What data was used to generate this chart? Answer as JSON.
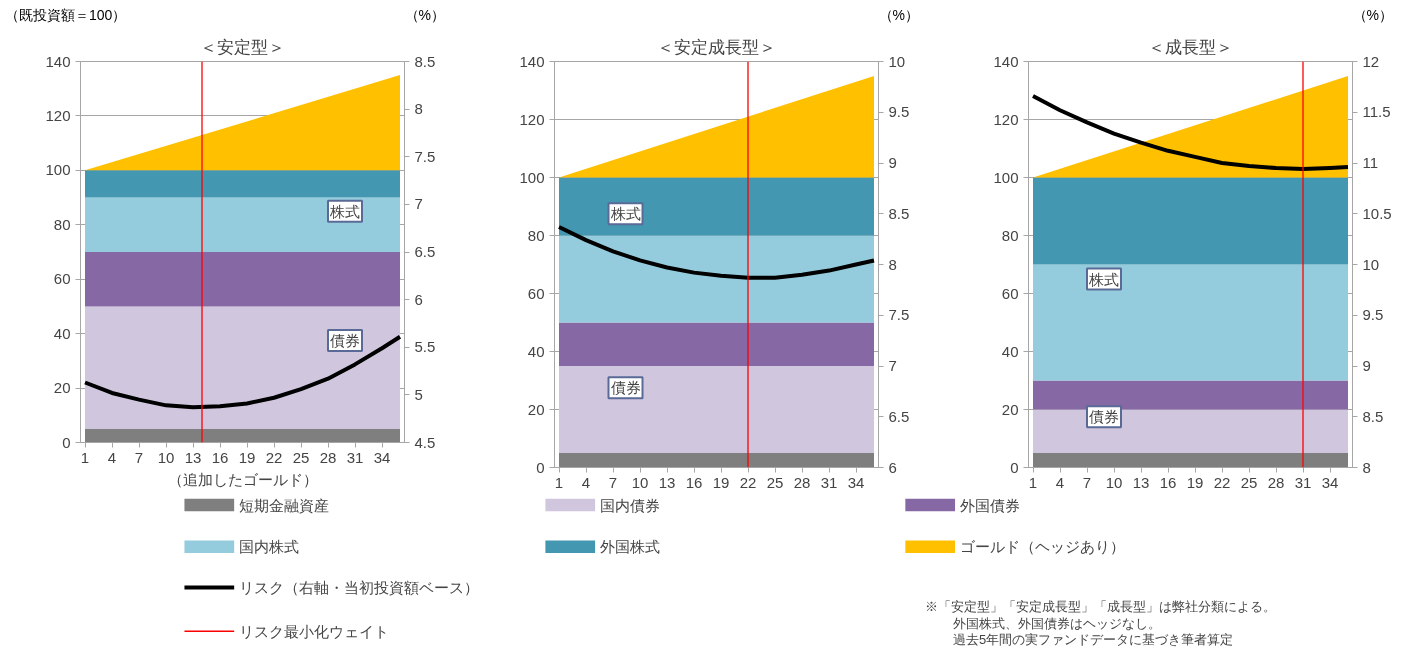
{
  "chart_data": [
    {
      "type": "area",
      "title": "＜安定型＞",
      "xlabel": "（追加したゴールド）",
      "ylabel": "（既投資額＝100）",
      "y2label": "（%）",
      "stacked": true,
      "legend": "bottom",
      "grid": "y",
      "xlim": [
        0.5,
        36.5
      ],
      "xticks": [
        1,
        4,
        7,
        10,
        13,
        16,
        19,
        22,
        25,
        28,
        31,
        34
      ],
      "ylim": [
        0,
        140
      ],
      "yticks": [
        0,
        20,
        40,
        60,
        80,
        100,
        120,
        140
      ],
      "y2lim": [
        4.5,
        8.5
      ],
      "y2ticks": [
        4.5,
        5,
        5.5,
        6,
        6.5,
        7,
        7.5,
        8,
        8.5
      ],
      "series": [
        {
          "name": "短期金融資産",
          "color": "#7f7f7f",
          "x": [
            1,
            36
          ],
          "values": [
            5,
            5
          ]
        },
        {
          "name": "国内債券",
          "color": "#d0c6de",
          "x": [
            1,
            36
          ],
          "values": [
            45,
            45
          ]
        },
        {
          "name": "外国債券",
          "color": "#8669a4",
          "x": [
            1,
            36
          ],
          "values": [
            20,
            20
          ]
        },
        {
          "name": "国内株式",
          "color": "#94ccdd",
          "x": [
            1,
            36
          ],
          "values": [
            20,
            20
          ]
        },
        {
          "name": "外国株式",
          "color": "#4397b0",
          "x": [
            1,
            36
          ],
          "values": [
            10,
            10
          ]
        },
        {
          "name": "ゴールド（ヘッジあり）",
          "color": "#ffc000",
          "x": [
            1,
            36
          ],
          "values": [
            0,
            35
          ]
        },
        {
          "name": "リスク（右軸・当初投資額ベース）",
          "type": "line",
          "axis": "y2",
          "color": "#000000",
          "x": [
            1,
            4,
            7,
            10,
            13,
            16,
            19,
            22,
            25,
            28,
            31,
            34,
            36
          ],
          "values": [
            5.13,
            5.02,
            4.95,
            4.89,
            4.87,
            4.88,
            4.91,
            4.97,
            5.06,
            5.17,
            5.32,
            5.49,
            5.61
          ]
        }
      ],
      "ref_lines": [
        {
          "axis": "x",
          "value": 14,
          "label": "リスク最小化ウェイト",
          "color": "#ff0000"
        }
      ],
      "annotations": [
        "株式",
        "債券"
      ]
    },
    {
      "type": "area",
      "title": "＜安定成長型＞",
      "y2label": "（%）",
      "stacked": true,
      "grid": "y",
      "xlim": [
        0.5,
        36.5
      ],
      "xticks": [
        1,
        4,
        7,
        10,
        13,
        16,
        19,
        22,
        25,
        28,
        31,
        34
      ],
      "ylim": [
        0,
        140
      ],
      "yticks": [
        0,
        20,
        40,
        60,
        80,
        100,
        120,
        140
      ],
      "y2lim": [
        6,
        10
      ],
      "y2ticks": [
        6,
        6.5,
        7,
        7.5,
        8,
        8.5,
        9,
        9.5,
        10
      ],
      "series": [
        {
          "color": "#7f7f7f",
          "x": [
            1,
            36
          ],
          "values": [
            5,
            5
          ]
        },
        {
          "color": "#d0c6de",
          "x": [
            1,
            36
          ],
          "values": [
            30,
            30
          ]
        },
        {
          "color": "#8669a4",
          "x": [
            1,
            36
          ],
          "values": [
            15,
            15
          ]
        },
        {
          "color": "#94ccdd",
          "x": [
            1,
            36
          ],
          "values": [
            30,
            30
          ]
        },
        {
          "color": "#4397b0",
          "x": [
            1,
            36
          ],
          "values": [
            20,
            20
          ]
        },
        {
          "color": "#ffc000",
          "x": [
            1,
            36
          ],
          "values": [
            0,
            35
          ]
        },
        {
          "type": "line",
          "axis": "y2",
          "color": "#000000",
          "x": [
            1,
            4,
            7,
            10,
            13,
            16,
            19,
            22,
            25,
            28,
            31,
            34,
            36
          ],
          "values": [
            8.37,
            8.24,
            8.13,
            8.04,
            7.97,
            7.92,
            7.89,
            7.87,
            7.87,
            7.9,
            7.94,
            8.0,
            8.04
          ]
        }
      ],
      "ref_lines": [
        {
          "axis": "x",
          "value": 22,
          "color": "#ff0000"
        }
      ],
      "annotations": [
        "株式",
        "債券"
      ]
    },
    {
      "type": "area",
      "title": "＜成長型＞",
      "y2label": "（%）",
      "stacked": true,
      "grid": "y",
      "xlim": [
        0.5,
        36.5
      ],
      "xticks": [
        1,
        4,
        7,
        10,
        13,
        16,
        19,
        22,
        25,
        28,
        31,
        34
      ],
      "ylim": [
        0,
        140
      ],
      "yticks": [
        0,
        20,
        40,
        60,
        80,
        100,
        120,
        140
      ],
      "y2lim": [
        8,
        12
      ],
      "y2ticks": [
        8,
        8.5,
        9,
        9.5,
        10,
        10.5,
        11,
        11.5,
        12
      ],
      "series": [
        {
          "color": "#7f7f7f",
          "x": [
            1,
            36
          ],
          "values": [
            5,
            5
          ]
        },
        {
          "color": "#d0c6de",
          "x": [
            1,
            36
          ],
          "values": [
            15,
            15
          ]
        },
        {
          "color": "#8669a4",
          "x": [
            1,
            36
          ],
          "values": [
            10,
            10
          ]
        },
        {
          "color": "#94ccdd",
          "x": [
            1,
            36
          ],
          "values": [
            40,
            40
          ]
        },
        {
          "color": "#4397b0",
          "x": [
            1,
            36
          ],
          "values": [
            30,
            30
          ]
        },
        {
          "color": "#ffc000",
          "x": [
            1,
            36
          ],
          "values": [
            0,
            35
          ]
        },
        {
          "type": "line",
          "axis": "y2",
          "color": "#000000",
          "x": [
            1,
            4,
            7,
            10,
            13,
            16,
            19,
            22,
            25,
            28,
            31,
            34,
            36
          ],
          "values": [
            11.66,
            11.52,
            11.4,
            11.29,
            11.2,
            11.12,
            11.06,
            11.0,
            10.97,
            10.95,
            10.94,
            10.95,
            10.96
          ]
        }
      ],
      "ref_lines": [
        {
          "axis": "x",
          "value": 31,
          "color": "#ff0000"
        }
      ],
      "annotations": [
        "株式",
        "債券",
        "※「安定型」「安定成長型」「成長型」は弊社分類による。",
        "外国株式、外国債券はヘッジなし。",
        "過去5年間の実ファンドデータに基づき筆者算定"
      ]
    }
  ]
}
